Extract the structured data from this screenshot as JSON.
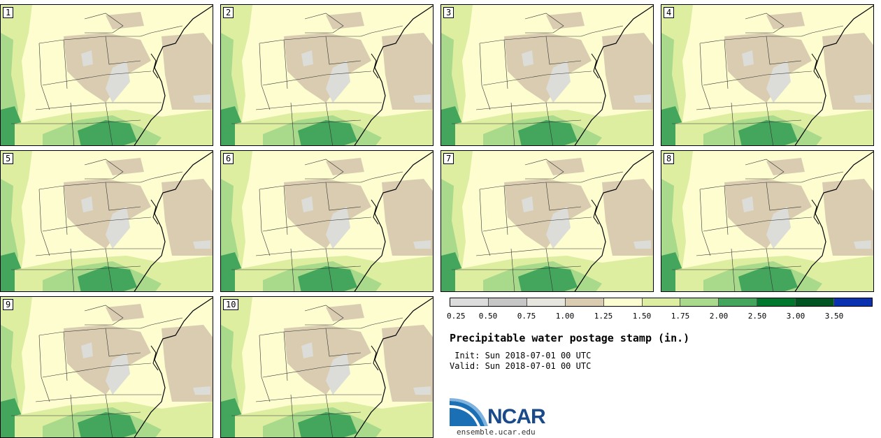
{
  "panels": [
    "1",
    "2",
    "3",
    "4",
    "5",
    "6",
    "7",
    "8",
    "9",
    "10"
  ],
  "colorbar": {
    "colors": [
      "#dcdcdc",
      "#c6c6c6",
      "#e6e6df",
      "#d9ccb0",
      "#fdfdd2",
      "#ddeea0",
      "#a9d98b",
      "#44a65c",
      "#00792f",
      "#005522",
      "#0a32b0"
    ],
    "ticks": [
      "0.25",
      "0.50",
      "0.75",
      "1.00",
      "1.25",
      "1.50",
      "1.75",
      "2.00",
      "2.50",
      "3.00",
      "3.50"
    ]
  },
  "title": "Precipitable water postage stamp (in.)",
  "init": " Init: Sun 2018-07-01 00 UTC",
  "valid": "Valid: Sun 2018-07-01 00 UTC",
  "logo_text": "NCAR",
  "site": "ensemble.ucar.edu",
  "map_colors": {
    "base": "#fdfdd0",
    "light_green": "#ddeea0",
    "mid_green": "#a9d98b",
    "dark_green": "#44a65c",
    "tan": "#d9ccb0",
    "gray": "#dcdcd8"
  }
}
